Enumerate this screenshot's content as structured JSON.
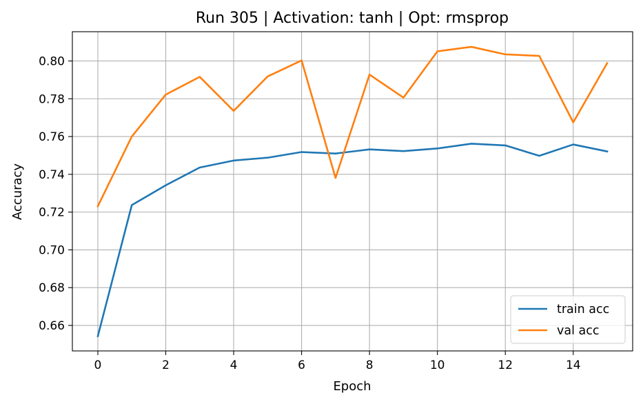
{
  "chart_data": {
    "type": "line",
    "title": "Run 305 | Activation: tanh | Opt: rmsprop",
    "xlabel": "Epoch",
    "ylabel": "Accuracy",
    "xlim": [
      -0.75,
      15.75
    ],
    "ylim": [
      0.6465,
      0.8155
    ],
    "xticks": [
      0,
      2,
      4,
      6,
      8,
      10,
      12,
      14
    ],
    "yticks": [
      0.66,
      0.68,
      0.7,
      0.72,
      0.74,
      0.76,
      0.78,
      0.8
    ],
    "xtick_labels": [
      "0",
      "2",
      "4",
      "6",
      "8",
      "10",
      "12",
      "14"
    ],
    "ytick_labels": [
      "0.66",
      "0.68",
      "0.70",
      "0.72",
      "0.74",
      "0.76",
      "0.78",
      "0.80"
    ],
    "grid": true,
    "legend_position": "lower-right",
    "x": [
      0,
      1,
      2,
      3,
      4,
      5,
      6,
      7,
      8,
      9,
      10,
      11,
      12,
      13,
      14,
      15
    ],
    "series": [
      {
        "name": "train acc",
        "color": "#1f77b4",
        "values": [
          0.6543,
          0.7237,
          0.7342,
          0.7436,
          0.7473,
          0.7488,
          0.7518,
          0.751,
          0.7532,
          0.7523,
          0.7537,
          0.7562,
          0.7553,
          0.7498,
          0.7558,
          0.7521
        ]
      },
      {
        "name": "val acc",
        "color": "#ff7f0e",
        "values": [
          0.7231,
          0.76,
          0.7822,
          0.7916,
          0.7736,
          0.7918,
          0.8003,
          0.7381,
          0.7928,
          0.7806,
          0.8051,
          0.8075,
          0.8035,
          0.8027,
          0.7675,
          0.7989
        ]
      }
    ]
  }
}
